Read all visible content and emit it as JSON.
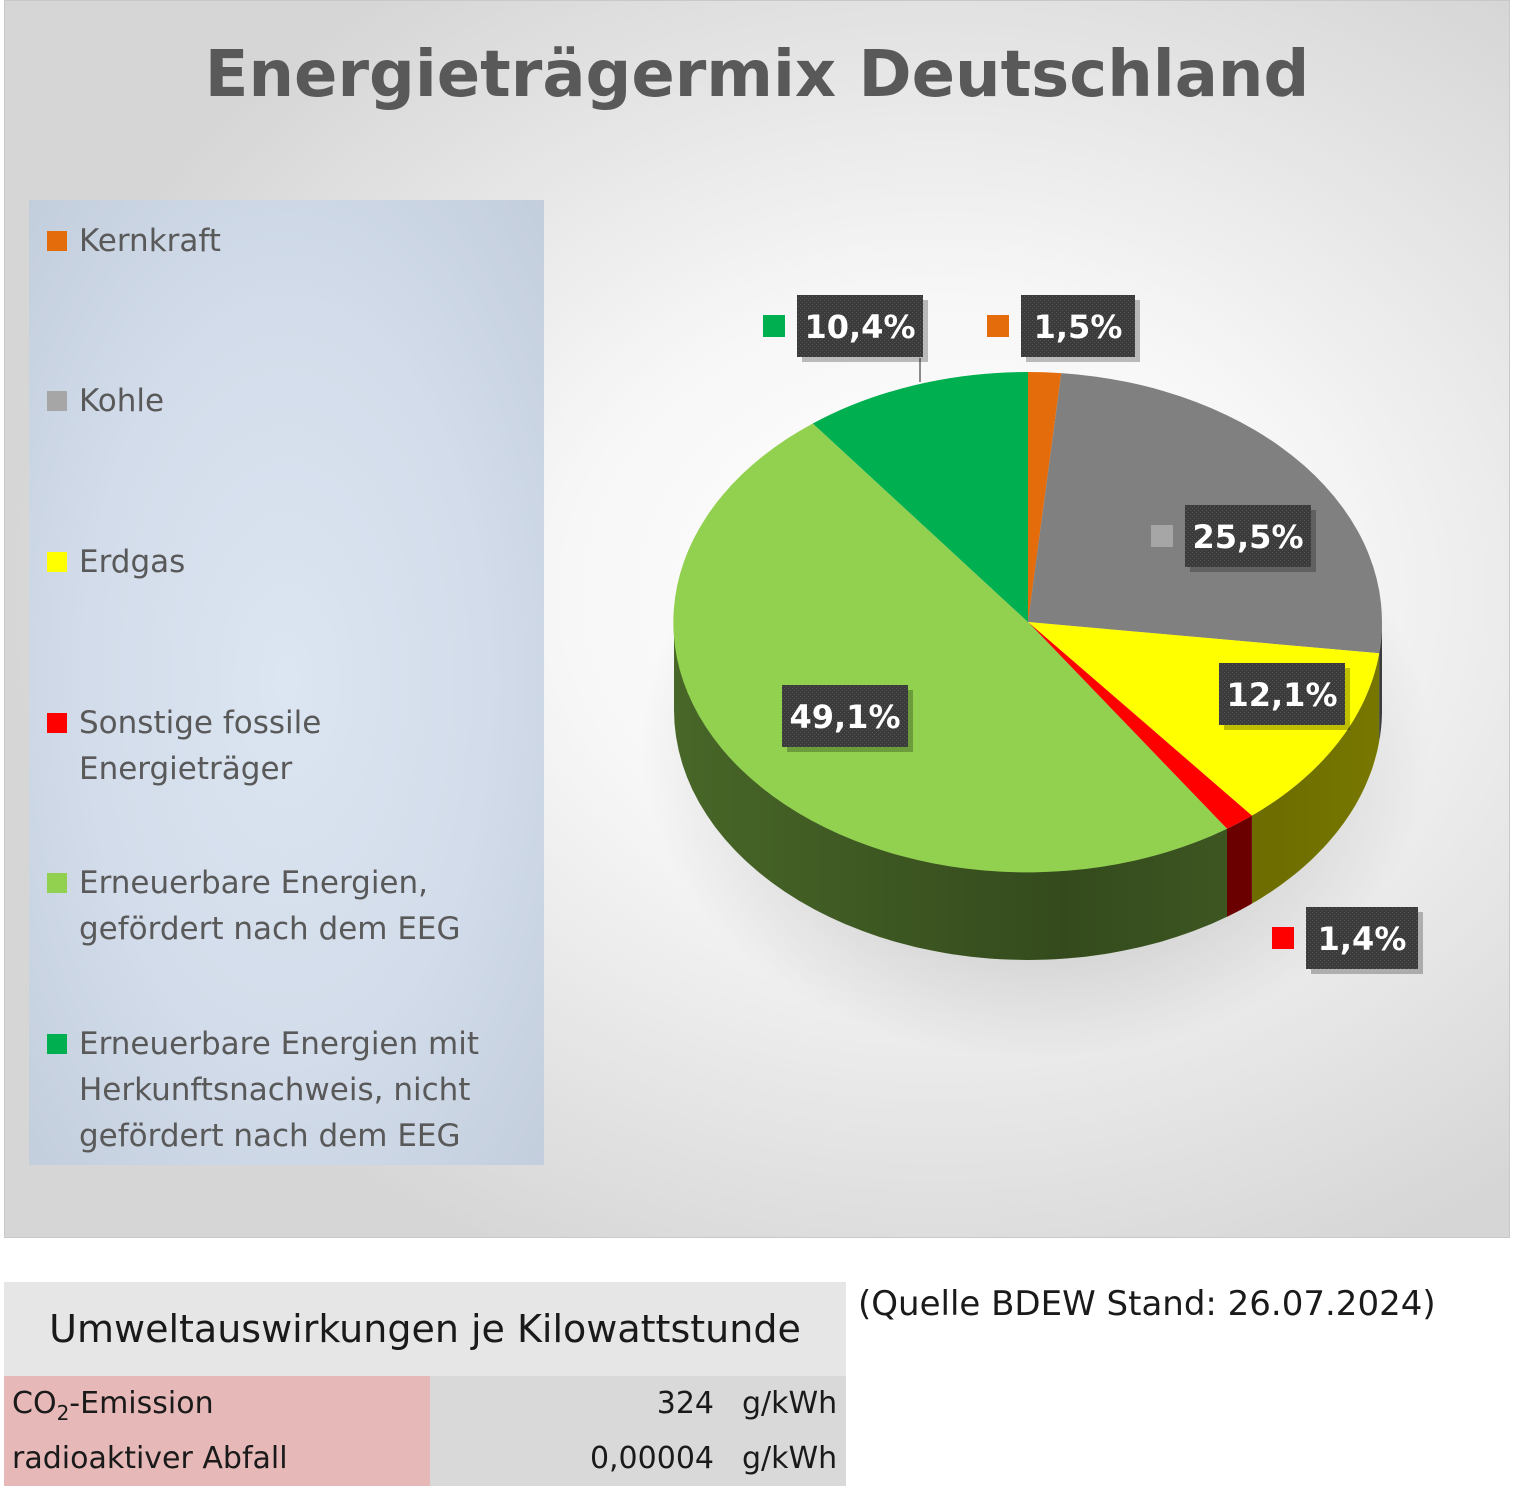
{
  "chart_data": {
    "type": "pie",
    "title": "Energieträgermix Deutschland",
    "legend_position": "left",
    "series": [
      {
        "name": "Kernkraft",
        "value": 1.5,
        "label": "1,5%",
        "color": "#e46c0a"
      },
      {
        "name": "Kohle",
        "value": 25.5,
        "label": "25,5%",
        "color": "#808080"
      },
      {
        "name": "Erdgas",
        "value": 12.1,
        "label": "12,1%",
        "color": "#ffff00"
      },
      {
        "name": "Sonstige fossile Energieträger",
        "value": 1.4,
        "label": "1,4%",
        "color": "#ff0000"
      },
      {
        "name": "Erneuerbare Energien, gefördert nach dem EEG",
        "value": 49.1,
        "label": "49,1%",
        "color": "#92d050"
      },
      {
        "name": "Erneuerbare Energien mit Herkunftsnachweis, nicht gefördert nach dem EEG",
        "value": 10.4,
        "label": "10,4%",
        "color": "#00b050"
      }
    ]
  },
  "legend": {
    "items": [
      {
        "lines": [
          "Kernkraft"
        ],
        "color": "#e46c0a"
      },
      {
        "lines": [
          "Kohle"
        ],
        "color": "#a6a6a6"
      },
      {
        "lines": [
          "Erdgas"
        ],
        "color": "#ffff00"
      },
      {
        "lines": [
          "Sonstige fossile Energieträger"
        ],
        "color": "#ff0000"
      },
      {
        "lines": [
          "Erneuerbare Energien,",
          "gefördert nach dem EEG"
        ],
        "color": "#92d050"
      },
      {
        "lines": [
          "Erneuerbare Energien mit",
          "Herkunftsnachweis, nicht",
          "gefördert nach dem EEG"
        ],
        "color": "#00b050"
      }
    ]
  },
  "impact_table": {
    "title": "Umweltauswirkungen je Kilowattstunde",
    "rows": [
      {
        "name_main": "CO",
        "name_sub": "2",
        "name_rest": "-Emission",
        "value": "324",
        "unit": "g/kWh"
      },
      {
        "name_main": "radioaktiver Abfall",
        "name_sub": "",
        "name_rest": "",
        "value": "0,00004",
        "unit": "g/kWh"
      }
    ]
  },
  "source_note": "(Quelle BDEW Stand: 26.07.2024)"
}
